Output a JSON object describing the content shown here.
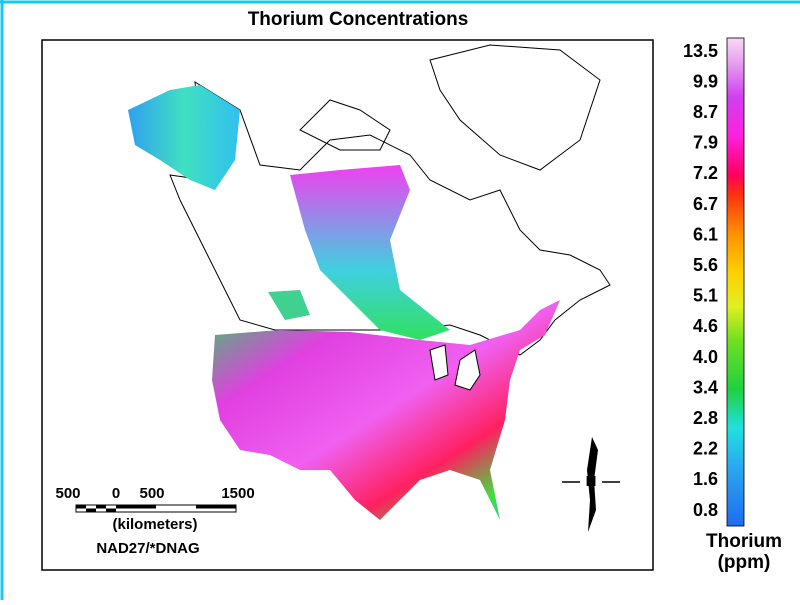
{
  "map": {
    "title": "Thorium Concentrations",
    "legend": {
      "title": "Thorium",
      "unit": "(ppm)",
      "labels": [
        "13.5",
        "9.9",
        "8.7",
        "7.9",
        "7.2",
        "6.7",
        "6.1",
        "5.6",
        "5.1",
        "4.6",
        "4.0",
        "3.4",
        "2.8",
        "2.2",
        "1.6",
        "0.8"
      ]
    },
    "scale_bar": {
      "labels": [
        "500",
        "0",
        "500",
        "1500"
      ],
      "unit": "(kilometers)",
      "datum": "NAD27/*DNAG"
    },
    "north_arrow": "N"
  }
}
